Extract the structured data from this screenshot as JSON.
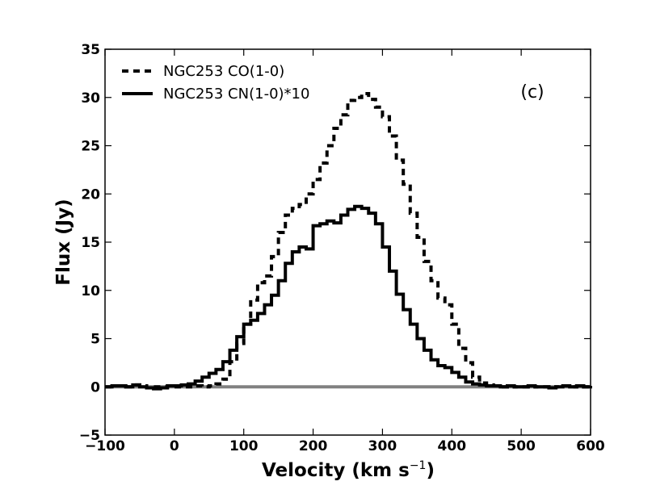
{
  "chart_data": {
    "type": "line",
    "step": true,
    "title": "",
    "panel_label": "(c)",
    "xlabel": "Velocity (km s",
    "xlabel_superscript": "−1",
    "xlabel_suffix": ")",
    "ylabel": "Flux (Jy)",
    "xlim": [
      -100,
      600
    ],
    "ylim": [
      -5,
      35
    ],
    "xticks": [
      -100,
      0,
      100,
      200,
      300,
      400,
      500,
      600
    ],
    "xtick_labels": [
      "−100",
      "0",
      "100",
      "200",
      "300",
      "400",
      "500",
      "600"
    ],
    "yticks": [
      -5,
      0,
      5,
      10,
      15,
      20,
      25,
      30,
      35
    ],
    "ytick_labels": [
      "−5",
      "0",
      "5",
      "10",
      "15",
      "20",
      "25",
      "30",
      "35"
    ],
    "grid": false,
    "legend_position": "top-left",
    "baseline": {
      "y": 0,
      "color": "#808080"
    },
    "series": [
      {
        "name": "NGC253 CO(1-0)",
        "style": "dashed",
        "color": "#000000",
        "x": [
          -100,
          -90,
          -80,
          -70,
          -60,
          -50,
          -40,
          -30,
          -20,
          -10,
          0,
          10,
          20,
          30,
          40,
          50,
          60,
          70,
          80,
          90,
          100,
          110,
          120,
          130,
          140,
          150,
          160,
          170,
          180,
          190,
          200,
          210,
          220,
          230,
          240,
          250,
          260,
          270,
          280,
          290,
          300,
          310,
          320,
          330,
          340,
          350,
          360,
          370,
          380,
          390,
          400,
          410,
          420,
          430,
          440,
          450,
          460,
          470,
          480,
          490,
          500,
          510,
          520,
          530,
          540,
          550,
          560,
          570,
          580,
          590,
          600
        ],
        "values": [
          0,
          0.1,
          0.1,
          0,
          0.2,
          0.1,
          -0.1,
          0,
          0,
          0.1,
          0,
          0,
          0,
          0.1,
          0,
          0.1,
          0.3,
          0.8,
          2.6,
          4.5,
          6.5,
          9.0,
          10.8,
          11.5,
          13.5,
          16.0,
          17.8,
          18.5,
          18.9,
          20.0,
          21.5,
          23.2,
          25.0,
          26.8,
          28.2,
          29.7,
          30.0,
          30.4,
          29.8,
          29.0,
          28.0,
          26.0,
          23.5,
          21.0,
          18.0,
          15.5,
          13.0,
          11.0,
          9.2,
          8.5,
          6.5,
          4.0,
          2.5,
          1.0,
          0.4,
          0.2,
          0.1,
          0,
          0.1,
          0,
          0,
          0.1,
          0,
          0,
          -0.1,
          0,
          0.1,
          0,
          0.1,
          0,
          0.1
        ]
      },
      {
        "name": "NGC253 CN(1-0)*10",
        "style": "solid",
        "color": "#000000",
        "x": [
          -100,
          -90,
          -80,
          -70,
          -60,
          -50,
          -40,
          -30,
          -20,
          -10,
          0,
          10,
          20,
          30,
          40,
          50,
          60,
          70,
          80,
          90,
          100,
          110,
          120,
          130,
          140,
          150,
          160,
          170,
          180,
          190,
          200,
          210,
          220,
          230,
          240,
          250,
          260,
          270,
          280,
          290,
          300,
          310,
          320,
          330,
          340,
          350,
          360,
          370,
          380,
          390,
          400,
          410,
          420,
          430,
          440,
          450,
          460,
          470,
          480,
          490,
          500,
          510,
          520,
          530,
          540,
          550,
          560,
          570,
          580,
          590,
          600
        ],
        "values": [
          0,
          0.1,
          0.1,
          0,
          0.2,
          0,
          -0.1,
          -0.2,
          -0.1,
          0.1,
          0.1,
          0.2,
          0.3,
          0.6,
          1.0,
          1.4,
          1.8,
          2.6,
          3.8,
          5.2,
          6.5,
          6.9,
          7.6,
          8.5,
          9.5,
          11.0,
          12.8,
          14.0,
          14.5,
          14.3,
          16.7,
          16.9,
          17.2,
          17.0,
          17.8,
          18.4,
          18.7,
          18.5,
          18.0,
          16.9,
          14.5,
          12.0,
          9.6,
          8.0,
          6.5,
          5.0,
          3.8,
          2.8,
          2.2,
          2.0,
          1.5,
          1.0,
          0.5,
          0.3,
          0.2,
          0.1,
          0.1,
          0,
          0.1,
          0,
          0,
          0.1,
          0,
          0,
          -0.1,
          0,
          0.1,
          0,
          0.1,
          0,
          0.1
        ]
      }
    ]
  }
}
